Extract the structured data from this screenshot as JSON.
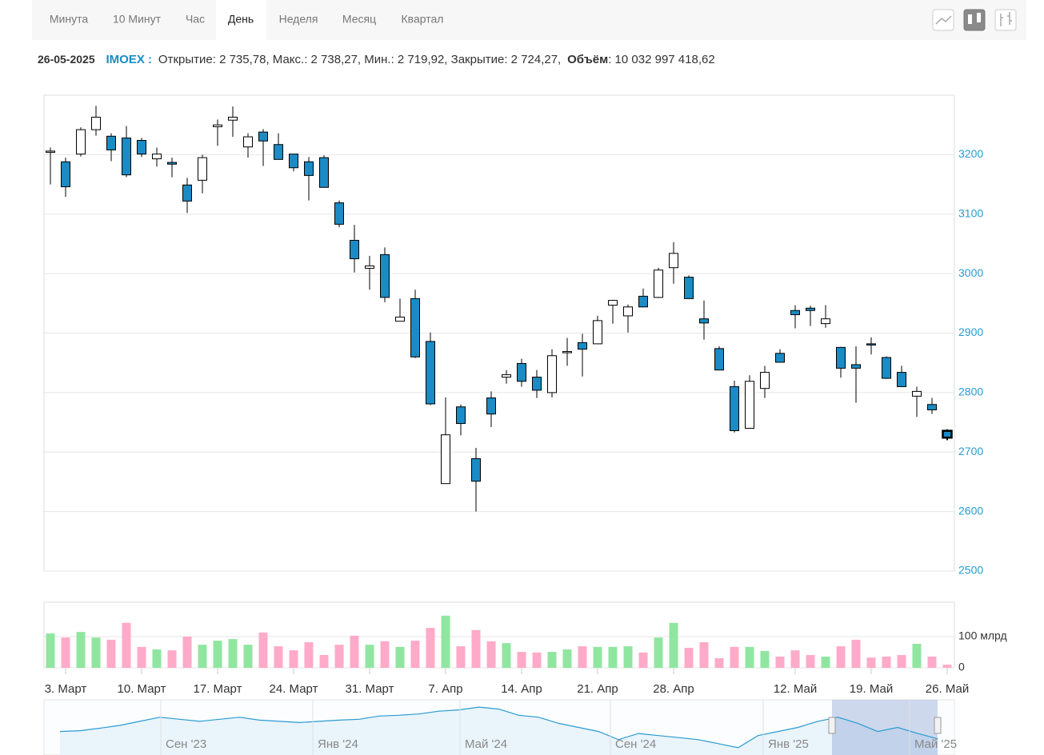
{
  "toolbar": {
    "tabs": [
      "Минута",
      "10 Минут",
      "Час",
      "День",
      "Неделя",
      "Месяц",
      "Квартал"
    ],
    "active": 3
  },
  "header": {
    "date": "26-05-2025",
    "ticker": "IMOEX :",
    "prices": "Открытие: 2 735,78, Макс.: 2 738,27, Мин.: 2 719,92, Закрытие: 2 724,27,",
    "volume_label": "Объём",
    "volume_value": ": 10 032 997 418,62"
  },
  "chart_data": {
    "type": "candlestick",
    "categories": [
      null,
      "3. Март",
      null,
      null,
      null,
      null,
      "10. Март",
      null,
      null,
      null,
      null,
      "17. Март",
      null,
      null,
      null,
      null,
      "24. Март",
      null,
      null,
      null,
      null,
      "31. Март",
      null,
      null,
      null,
      null,
      "7. Апр",
      null,
      null,
      null,
      null,
      "14. Апр",
      null,
      null,
      null,
      null,
      "21. Апр",
      null,
      null,
      null,
      null,
      "28. Апр",
      null,
      null,
      null,
      null,
      null,
      null,
      null,
      "12. Май",
      null,
      null,
      null,
      null,
      "19. Май",
      null,
      null,
      null,
      null,
      "26. Май"
    ],
    "open": [
      3205,
      3188,
      3201,
      3242,
      3231,
      3228,
      3224,
      3193,
      3187,
      3149,
      3157,
      3247,
      3258,
      3213,
      3238,
      3217,
      3201,
      3188,
      3195,
      3119,
      3056,
      3009,
      3032,
      2920,
      2958,
      2886,
      2647,
      2776,
      2689,
      2791,
      2826,
      2849,
      2826,
      2800,
      2868,
      2884,
      2882,
      2947,
      2929,
      2962,
      2960,
      3010,
      2994,
      2924,
      2874,
      2810,
      2740,
      2807,
      2866,
      2938,
      2942,
      2916,
      2876,
      2847,
      2882,
      2859,
      2834,
      2794,
      2780,
      2735.78
    ],
    "high": [
      3212,
      3195,
      3246,
      3282,
      3236,
      3248,
      3228,
      3212,
      3195,
      3161,
      3200,
      3259,
      3281,
      3236,
      3243,
      3236,
      3201,
      3196,
      3199,
      3123,
      3082,
      3030,
      3044,
      2958,
      2973,
      2901,
      2792,
      2780,
      2707,
      2802,
      2838,
      2857,
      2838,
      2873,
      2892,
      2899,
      2929,
      2956,
      2948,
      2975,
      3010,
      3053,
      2997,
      2955,
      2878,
      2820,
      2829,
      2845,
      2873,
      2947,
      2946,
      2947,
      2877,
      2878,
      2893,
      2861,
      2845,
      2810,
      2791,
      2738.27
    ],
    "low": [
      3150,
      3129,
      3197,
      3232,
      3189,
      3162,
      3196,
      3180,
      3162,
      3102,
      3135,
      3215,
      3230,
      3195,
      3181,
      3192,
      3172,
      3123,
      3145,
      3078,
      3002,
      2973,
      2952,
      2920,
      2858,
      2779,
      2647,
      2728,
      2600,
      2742,
      2815,
      2810,
      2791,
      2792,
      2845,
      2827,
      2882,
      2916,
      2901,
      2944,
      2959,
      2983,
      2958,
      2889,
      2838,
      2733,
      2740,
      2791,
      2851,
      2908,
      2912,
      2909,
      2825,
      2783,
      2864,
      2823,
      2810,
      2759,
      2764,
      2719.92
    ],
    "close": [
      3206,
      3146,
      3242,
      3263,
      3208,
      3166,
      3201,
      3201,
      3184,
      3122,
      3195,
      3250,
      3263,
      3230,
      3223,
      3192,
      3178,
      3165,
      3145,
      3083,
      3025,
      3013,
      2960,
      2927,
      2860,
      2781,
      2729,
      2748,
      2651,
      2764,
      2830,
      2819,
      2804,
      2862,
      2869,
      2873,
      2921,
      2955,
      2944,
      2944,
      3006,
      3034,
      2958,
      2917,
      2838,
      2736,
      2819,
      2834,
      2851,
      2931,
      2938,
      2924,
      2841,
      2841,
      2880,
      2824,
      2810,
      2802,
      2771,
      2724.27
    ],
    "up_color": "#ffffff",
    "down_color": "#1a8bc4",
    "ylim": [
      2500,
      3300
    ],
    "yticks": [
      2500,
      2600,
      2700,
      2800,
      2900,
      3000,
      3100,
      3200
    ],
    "grid": true,
    "volume": {
      "values": [
        110,
        97,
        115,
        97,
        90,
        144,
        67,
        59,
        56,
        100,
        74,
        87,
        92,
        74,
        113,
        69,
        56,
        82,
        41,
        74,
        103,
        74,
        85,
        67,
        87,
        128,
        167,
        69,
        121,
        85,
        79,
        51,
        49,
        51,
        59,
        69,
        67,
        67,
        69,
        49,
        97,
        144,
        64,
        82,
        31,
        67,
        67,
        54,
        36,
        56,
        41,
        36,
        69,
        90,
        33,
        36,
        41,
        77,
        36,
        10
      ],
      "up_color": "#90e6a0",
      "down_color": "#ffaac8",
      "ylim": [
        0,
        210
      ],
      "yticks": [
        0,
        {
          "value": 100,
          "label": "100 млрд"
        }
      ]
    },
    "navigator": {
      "values": [
        2900,
        2920,
        2980,
        3050,
        3150,
        3250,
        3200,
        3150,
        3200,
        3250,
        3180,
        3150,
        3120,
        3150,
        3180,
        3200,
        3280,
        3300,
        3330,
        3400,
        3430,
        3500,
        3450,
        3300,
        3250,
        3100,
        3000,
        2900,
        2700,
        2850,
        2800,
        2750,
        2700,
        2600,
        2500,
        2800,
        2900,
        3000,
        3150,
        3250,
        3100,
        2900,
        3000,
        2850,
        2720
      ],
      "ylim": [
        2400,
        3600
      ],
      "color": "#2a9bd0",
      "labels": [
        "Сен '23",
        "Янв '24",
        "Май '24",
        "Сен '24",
        "Янв '25",
        "Май '25"
      ]
    }
  }
}
